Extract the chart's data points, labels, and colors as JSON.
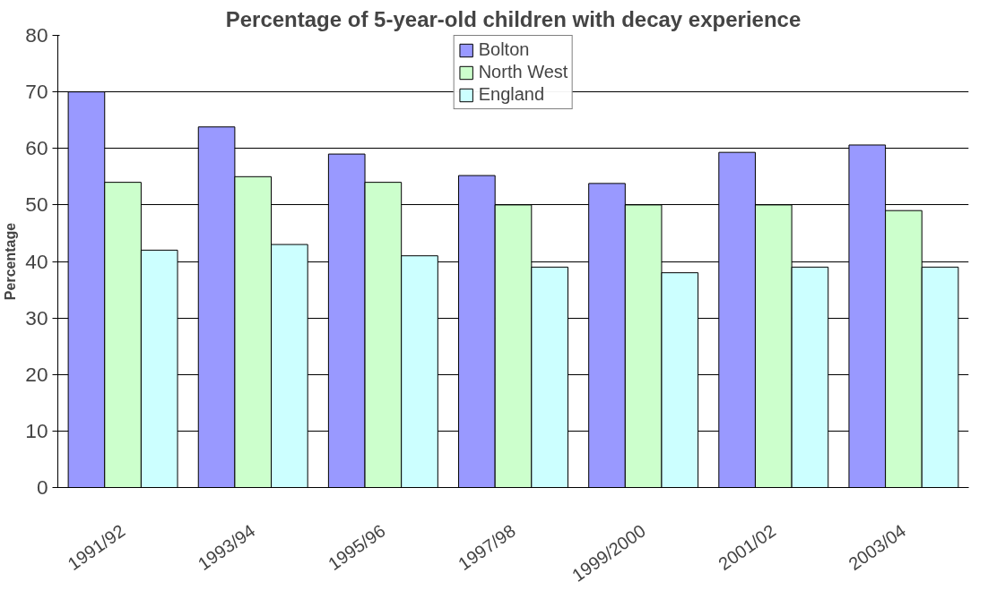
{
  "chart_data": {
    "type": "bar",
    "title": "Percentage of 5-year-old children with decay experience",
    "ylabel": "Percentage",
    "categories": [
      "1991/92",
      "1993/94",
      "1995/96",
      "1997/98",
      "1999/2000",
      "2001/02",
      "2003/04"
    ],
    "series": [
      {
        "name": "Bolton",
        "color": "#9999ff",
        "values": [
          70,
          63.8,
          59,
          55.2,
          53.8,
          59.3,
          60.6
        ]
      },
      {
        "name": "North West",
        "color": "#ccffcc",
        "values": [
          54,
          55,
          54,
          50,
          50,
          50,
          49
        ]
      },
      {
        "name": "England",
        "color": "#ccffff",
        "values": [
          42,
          43,
          41,
          39,
          38,
          39,
          39
        ]
      }
    ],
    "ylim": [
      0,
      80
    ],
    "yticks": [
      0,
      10,
      20,
      30,
      40,
      50,
      60,
      70,
      80
    ],
    "grid": "y",
    "legend": "top"
  }
}
